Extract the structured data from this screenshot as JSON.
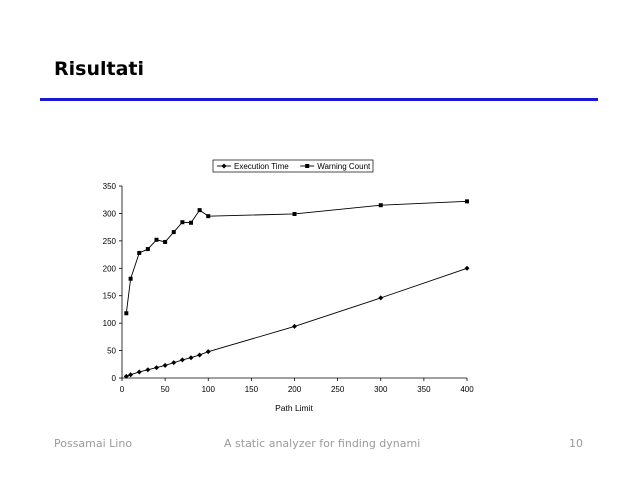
{
  "slide": {
    "title": "Risultati",
    "footer_left": "Possamai Lino",
    "footer_center": "A static analyzer for finding dynami",
    "page_number": "10",
    "accent_color": "#1a1ad6"
  },
  "chart_data": {
    "type": "line",
    "title": "",
    "xlabel": "Path Limit",
    "ylabel": "",
    "xlim": [
      0,
      400
    ],
    "ylim": [
      0,
      350
    ],
    "xticks": [
      "0",
      "50",
      "100",
      "150",
      "200",
      "250",
      "300",
      "350",
      "400"
    ],
    "yticks": [
      "0",
      "50",
      "100",
      "150",
      "200",
      "250",
      "300",
      "350"
    ],
    "grid": false,
    "legend_position": "top",
    "series": [
      {
        "name": "Execution Time",
        "marker": "diamond",
        "color": "#000000",
        "x": [
          5,
          10,
          20,
          30,
          40,
          50,
          60,
          70,
          80,
          90,
          100,
          200,
          300,
          400
        ],
        "y": [
          3,
          6,
          11,
          15,
          19,
          23,
          28,
          33,
          37,
          42,
          48,
          94,
          146,
          200
        ]
      },
      {
        "name": "Warning Count",
        "marker": "square",
        "color": "#000000",
        "x": [
          5,
          10,
          20,
          30,
          40,
          50,
          60,
          70,
          80,
          90,
          100,
          200,
          300,
          400
        ],
        "y": [
          118,
          181,
          228,
          235,
          252,
          248,
          266,
          284,
          283,
          306,
          295,
          299,
          315,
          322
        ]
      }
    ]
  }
}
